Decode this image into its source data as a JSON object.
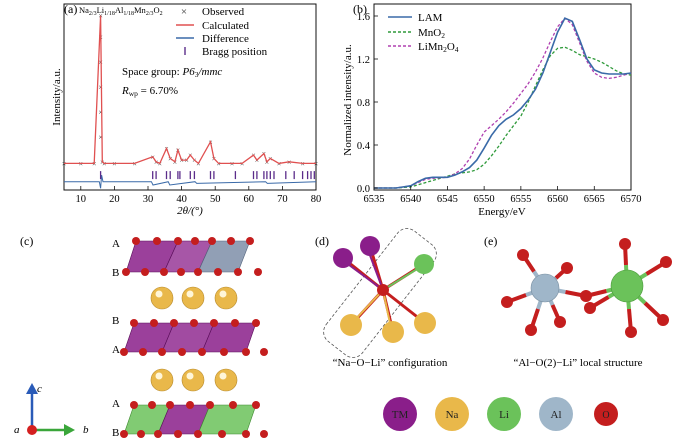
{
  "colors": {
    "observed": "#333333",
    "calculated": "#e05050",
    "difference": "#3a6aa8",
    "bragg": "#5b2c8a",
    "lam": "#3a6aa8",
    "mno2": "#2e9a3a",
    "limn2o4": "#b040b0",
    "tm": "#8a1e8a",
    "na": "#e9b84a",
    "li": "#6bc25a",
    "al": "#9fb6c9",
    "o": "#c41e1e",
    "axis_c": "#2a5bb8",
    "axis_b": "#3aa63a",
    "axis_a": "#d42020"
  },
  "panel_a": {
    "label": "(a)",
    "formula": "Na",
    "formula_rest": [
      {
        "t": "Na",
        "sub": "2/3"
      },
      {
        "t": "Li",
        "sub": "1/18"
      },
      {
        "t": "Al",
        "sub": "1/18"
      },
      {
        "t": "Mn",
        "sub": "2/3"
      },
      {
        "t": "O",
        "sub": "2"
      }
    ],
    "space_group_label": "Space group: ",
    "space_group_value": "P6",
    "space_group_sub": "3",
    "space_group_tail": "/mmc",
    "rwp_label": "R",
    "rwp_sub": "wp",
    "rwp_value": " = 6.70%",
    "legend": [
      "Observed",
      "Calculated",
      "Difference",
      "Bragg position"
    ]
  },
  "panel_b": {
    "label": "(b)",
    "legend": [
      "LAM",
      "MnO",
      "LiMn"
    ],
    "legend_subs": [
      "",
      "2",
      "2"
    ],
    "legend_tail": [
      "",
      "",
      "O"
    ],
    "legend_tail_sub": [
      "",
      "",
      "4"
    ]
  },
  "panel_c": {
    "label": "(c)",
    "layer_labels": [
      "A",
      "B",
      "B",
      "A",
      "A",
      "B"
    ],
    "axis_labels": {
      "c": "c",
      "a": "a",
      "b": "b"
    }
  },
  "panel_d": {
    "label": "(d)",
    "caption": "“Na−O−Li” configuration"
  },
  "panel_e": {
    "label": "(e)",
    "caption": "“Al−O(2)−Li” local structure"
  },
  "atom_legend": [
    {
      "symbol": "TM",
      "color_key": "tm"
    },
    {
      "symbol": "Na",
      "color_key": "na"
    },
    {
      "symbol": "Li",
      "color_key": "li"
    },
    {
      "symbol": "Al",
      "color_key": "al"
    },
    {
      "symbol": "O",
      "color_key": "o"
    }
  ],
  "chart_data": [
    {
      "type": "line",
      "title": "",
      "xlabel": "2θ/(°)",
      "ylabel": "Intensity/a.u.",
      "xlim": [
        5,
        80
      ],
      "xticks": [
        10,
        20,
        30,
        40,
        50,
        60,
        70,
        80
      ],
      "ylim": [
        -0.12,
        1.0
      ],
      "grid": false,
      "legend_position": "top-right",
      "series": [
        {
          "name": "Observed",
          "style": "markers-x",
          "x": [
            5,
            10,
            14,
            15.9,
            16.4,
            17,
            20,
            26,
            31.4,
            32.4,
            33.5,
            35.5,
            36.6,
            38,
            38.9,
            40,
            41.5,
            42.6,
            43.8,
            45,
            48.6,
            49.6,
            51,
            55,
            58,
            61.4,
            62.4,
            64.5,
            65.4,
            66.4,
            69,
            72,
            76,
            80
          ],
          "y": [
            0.04,
            0.04,
            0.04,
            0.93,
            0.05,
            0.04,
            0.04,
            0.04,
            0.08,
            0.05,
            0.04,
            0.13,
            0.07,
            0.05,
            0.12,
            0.06,
            0.06,
            0.09,
            0.06,
            0.04,
            0.17,
            0.07,
            0.04,
            0.04,
            0.04,
            0.09,
            0.06,
            0.1,
            0.05,
            0.07,
            0.04,
            0.05,
            0.04,
            0.04
          ]
        },
        {
          "name": "Calculated",
          "x": [
            5,
            10,
            14,
            15.9,
            16.4,
            17,
            20,
            26,
            31.4,
            32.4,
            33.5,
            35.5,
            36.6,
            38,
            38.9,
            40,
            41.5,
            42.6,
            43.8,
            45,
            48.6,
            49.6,
            51,
            55,
            58,
            61.4,
            62.4,
            64.5,
            65.4,
            66.4,
            69,
            72,
            76,
            80
          ],
          "y": [
            0.04,
            0.04,
            0.04,
            0.93,
            0.05,
            0.04,
            0.04,
            0.04,
            0.08,
            0.05,
            0.04,
            0.13,
            0.07,
            0.05,
            0.12,
            0.06,
            0.06,
            0.09,
            0.06,
            0.04,
            0.17,
            0.07,
            0.04,
            0.04,
            0.04,
            0.09,
            0.06,
            0.1,
            0.05,
            0.07,
            0.04,
            0.05,
            0.04,
            0.04
          ]
        },
        {
          "name": "Difference",
          "x": [
            5,
            15.5,
            15.9,
            16.2,
            16.6,
            31,
            31.5,
            36,
            36.5,
            44,
            44.5,
            65,
            65.5,
            80
          ],
          "y": [
            -0.07,
            -0.07,
            -0.11,
            -0.03,
            -0.07,
            -0.07,
            -0.09,
            -0.07,
            -0.09,
            -0.07,
            -0.08,
            -0.07,
            -0.08,
            -0.07
          ]
        },
        {
          "name": "Bragg position",
          "style": "ticks",
          "x": [
            15.9,
            31.4,
            32.4,
            35.5,
            36.6,
            38.9,
            39.5,
            42.6,
            43.8,
            48.6,
            49.6,
            56,
            61.4,
            62.4,
            64.5,
            65.4,
            66.4,
            67.5,
            71,
            73.5,
            76,
            77.5,
            78.5,
            79.5
          ],
          "y_level": -0.03
        }
      ]
    },
    {
      "type": "line",
      "title": "",
      "xlabel": "Energy/eV",
      "ylabel": "Normalized intensity/a.u.",
      "xlim": [
        6535,
        6570
      ],
      "xticks": [
        6535,
        6540,
        6545,
        6550,
        6555,
        6560,
        6565,
        6570
      ],
      "ylim": [
        0,
        1.6
      ],
      "yticks": [
        0.0,
        0.4,
        0.8,
        1.2,
        1.6
      ],
      "grid": false,
      "legend_position": "top-left",
      "series": [
        {
          "name": "LAM",
          "style": "solid",
          "x": [
            6535,
            6538,
            6540,
            6541,
            6542,
            6543,
            6545,
            6546,
            6547,
            6548,
            6549,
            6550,
            6551,
            6552,
            6553,
            6554,
            6555,
            6556,
            6557,
            6558,
            6559,
            6560,
            6561,
            6562,
            6563,
            6564,
            6565,
            6566,
            6567,
            6568,
            6569,
            6570
          ],
          "y": [
            0.0,
            0.0,
            0.02,
            0.06,
            0.09,
            0.1,
            0.1,
            0.12,
            0.15,
            0.19,
            0.26,
            0.37,
            0.49,
            0.58,
            0.64,
            0.68,
            0.74,
            0.82,
            0.92,
            1.07,
            1.26,
            1.45,
            1.58,
            1.55,
            1.38,
            1.2,
            1.1,
            1.07,
            1.06,
            1.06,
            1.06,
            1.07
          ]
        },
        {
          "name": "MnO2",
          "style": "dashed",
          "x": [
            6535,
            6538,
            6540,
            6541,
            6542,
            6543,
            6545,
            6546,
            6547,
            6548,
            6549,
            6550,
            6551,
            6552,
            6553,
            6554,
            6555,
            6556,
            6557,
            6558,
            6559,
            6560,
            6561,
            6562,
            6563,
            6564,
            6565,
            6566,
            6567,
            6568,
            6569,
            6570
          ],
          "y": [
            0.0,
            0.0,
            0.01,
            0.03,
            0.05,
            0.07,
            0.11,
            0.13,
            0.14,
            0.15,
            0.17,
            0.22,
            0.3,
            0.39,
            0.49,
            0.58,
            0.67,
            0.8,
            0.95,
            1.1,
            1.23,
            1.3,
            1.31,
            1.28,
            1.24,
            1.22,
            1.2,
            1.17,
            1.13,
            1.09,
            1.06,
            1.05
          ]
        },
        {
          "name": "LiMn2O4",
          "style": "dashed",
          "x": [
            6535,
            6538,
            6540,
            6541,
            6542,
            6543,
            6545,
            6546,
            6547,
            6548,
            6549,
            6550,
            6551,
            6552,
            6553,
            6554,
            6555,
            6556,
            6557,
            6558,
            6559,
            6560,
            6561,
            6562,
            6563,
            6564,
            6565,
            6566,
            6567,
            6568,
            6569,
            6570
          ],
          "y": [
            0.0,
            0.0,
            0.02,
            0.05,
            0.08,
            0.09,
            0.1,
            0.13,
            0.18,
            0.27,
            0.4,
            0.52,
            0.58,
            0.64,
            0.71,
            0.79,
            0.88,
            0.97,
            1.08,
            1.21,
            1.36,
            1.5,
            1.58,
            1.52,
            1.35,
            1.18,
            1.07,
            1.03,
            1.02,
            1.03,
            1.05,
            1.07
          ]
        }
      ]
    }
  ]
}
